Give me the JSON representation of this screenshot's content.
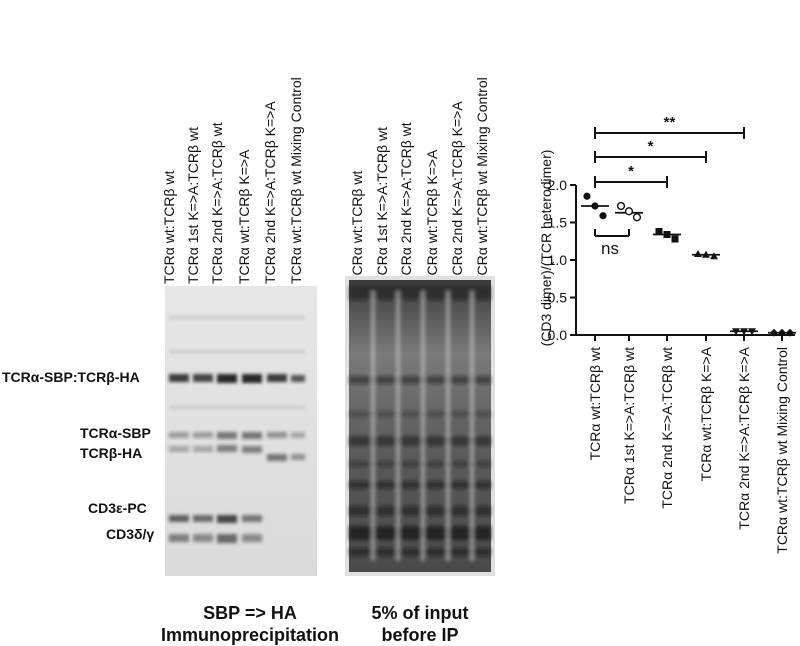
{
  "lane_labels": [
    "TCRα wt:TCRβ wt",
    "TCRα 1st K=>A:TCRβ wt",
    "TCRα 2nd K=>A:TCRβ wt",
    "TCRα wt:TCRβ K=>A",
    "TCRα 2nd K=>A:TCRβ K=>A",
    "TCRα wt:TCRβ wt Mixing Control"
  ],
  "bands": {
    "heterodimer": "TCRα-SBP:TCRβ-HA",
    "alpha": "TCRα-SBP",
    "beta": "TCRβ-HA",
    "cd3e": "CD3ε-PC",
    "cd3dg": "CD3δ/γ"
  },
  "captions": {
    "ip_line1": "SBP => HA",
    "ip_line2": "Immunoprecipitation",
    "input_line1": "5% of input",
    "input_line2": "before IP"
  },
  "colors": {
    "gel_bg": "#d9d9d9",
    "band": "#202020",
    "input_gel": "#6a6a6a"
  },
  "chart_data": {
    "type": "scatter",
    "ylabel": "(CD3 dimer)/(TCR heterodimer)",
    "ylim": [
      0,
      2.0
    ],
    "yticks": [
      "0.0",
      "0.5",
      "1.0",
      "1.5",
      "2.0"
    ],
    "categories": [
      "TCRα wt:TCRβ wt",
      "TCRα 1st K=>A:TCRβ wt",
      "TCRα 2nd K=>A:TCRβ wt",
      "TCRα wt:TCRβ K=>A",
      "TCRα 2nd K=>A:TCRβ K=>A",
      "TCRα wt:TCRβ wt Mixing Control"
    ],
    "series": [
      {
        "marker": "filled-circle",
        "category": 0,
        "values": [
          1.85,
          1.72,
          1.59
        ],
        "mean": 1.72
      },
      {
        "marker": "open-circle",
        "category": 1,
        "values": [
          1.72,
          1.65,
          1.57
        ],
        "mean": 1.63
      },
      {
        "marker": "filled-square",
        "category": 2,
        "values": [
          1.38,
          1.34,
          1.28
        ],
        "mean": 1.34
      },
      {
        "marker": "filled-triangle",
        "category": 3,
        "values": [
          1.08,
          1.07,
          1.05
        ],
        "mean": 1.07
      },
      {
        "marker": "filled-inverted-triangle",
        "category": 4,
        "values": [
          0.05,
          0.05,
          0.05
        ],
        "mean": 0.05
      },
      {
        "marker": "filled-diamond",
        "category": 5,
        "values": [
          0.03,
          0.03,
          0.03
        ],
        "mean": 0.03
      }
    ],
    "significance": [
      {
        "from": 0,
        "to": 1,
        "label": "ns",
        "below": true
      },
      {
        "from": 0,
        "to": 2,
        "label": "*"
      },
      {
        "from": 0,
        "to": 3,
        "label": "*"
      },
      {
        "from": 0,
        "to": 4,
        "label": "**"
      }
    ]
  }
}
